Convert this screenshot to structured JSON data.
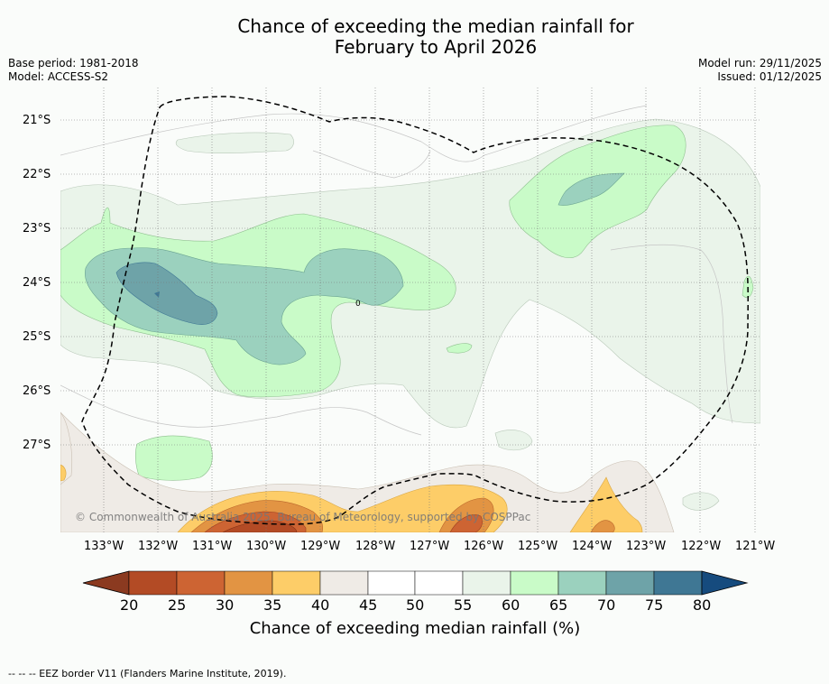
{
  "title": {
    "line1": "Chance of exceeding the median rainfall for",
    "line2": "February to April 2026"
  },
  "meta": {
    "base_period": "Base period: 1981-2018",
    "model": "Model: ACCESS-S2",
    "model_run": "Model run: 29/11/2025",
    "issued": "Issued: 01/12/2025"
  },
  "map": {
    "latitudes": [
      "21°S",
      "22°S",
      "23°S",
      "24°S",
      "25°S",
      "26°S",
      "27°S"
    ],
    "longitudes": [
      "133°W",
      "132°W",
      "131°W",
      "130°W",
      "129°W",
      "128°W",
      "127°W",
      "126°W",
      "125°W",
      "124°W",
      "123°W",
      "122°W",
      "121°W"
    ],
    "contour_label": "0",
    "copyright": "© Commonwealth of Australia 2025, Bureau of Meteorology, supported by COSPPac"
  },
  "colorbar": {
    "ticks": [
      "20",
      "25",
      "30",
      "35",
      "40",
      "45",
      "50",
      "55",
      "60",
      "65",
      "70",
      "75",
      "80"
    ],
    "colors": [
      "#8b3a20",
      "#b34b25",
      "#cd6433",
      "#e29443",
      "#fdcd68",
      "#efebe6",
      "#ffffff",
      "#ffffff",
      "#eaf4ea",
      "#c9fbc8",
      "#9bd1be",
      "#6ea3a8",
      "#3f7794",
      "#164b7e"
    ],
    "title": "Chance of exceeding median rainfall (%)"
  },
  "footer": "--  --  -- EEZ border V11 (Flanders Marine Institute, 2019)."
}
